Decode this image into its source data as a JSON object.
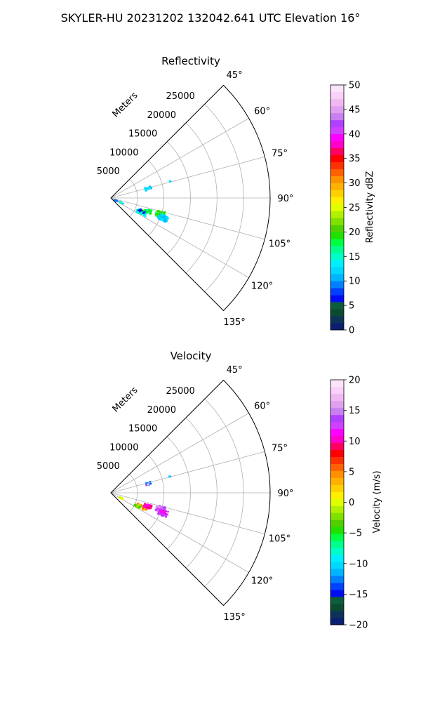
{
  "figure": {
    "suptitle": "SKYLER-HU  20231202  132042.641 UTC Elevation 16°"
  },
  "chart_data": [
    {
      "type": "polar-sector",
      "title": "Reflectivity",
      "radial_label": "Meters",
      "theta_range": [
        45,
        135
      ],
      "r_range": [
        0,
        30000
      ],
      "grid": true,
      "theta_ticks": [
        "45°",
        "60°",
        "75°",
        "90°",
        "105°",
        "120°",
        "135°"
      ],
      "theta_values": [
        45,
        60,
        75,
        90,
        105,
        120,
        135
      ],
      "r_ticks": [
        "5000",
        "10000",
        "15000",
        "20000",
        "25000"
      ],
      "r_values": [
        5000,
        10000,
        15000,
        20000,
        25000
      ],
      "colorbar": {
        "label": "Reflectivity dBZ",
        "range": [
          0,
          50
        ],
        "ticks": [
          "0",
          "5",
          "10",
          "15",
          "20",
          "25",
          "30",
          "35",
          "40",
          "45",
          "50"
        ],
        "tick_values": [
          0,
          5,
          10,
          15,
          20,
          25,
          30,
          35,
          40,
          45,
          50
        ],
        "colors": [
          "#0a1f6e",
          "#0d3358",
          "#0b4a2f",
          "#0d5c3a",
          "#000cf5",
          "#0040ff",
          "#0080ff",
          "#00b4ff",
          "#00d8ff",
          "#00eeff",
          "#00ffc8",
          "#00ff8c",
          "#00ff40",
          "#20e000",
          "#50d000",
          "#80e000",
          "#b0f000",
          "#e0ff00",
          "#ffee00",
          "#ffd000",
          "#ffb000",
          "#ff9000",
          "#ff6000",
          "#ff3000",
          "#ff0000",
          "#ff0060",
          "#ff00c8",
          "#ff00ff",
          "#d040ff",
          "#b040ff",
          "#c880f0",
          "#e0a0f0",
          "#f0b8f0",
          "#f8d0f8",
          "#fbe4fb"
        ]
      },
      "echoes": [
        {
          "theta": 76,
          "r": 7300,
          "value": 12,
          "spread_r": 600,
          "spread_t": 2.5,
          "count": 14
        },
        {
          "theta": 74.5,
          "r": 11500,
          "value": 13,
          "spread_r": 150,
          "spread_t": 0.6,
          "count": 3
        },
        {
          "theta": 117,
          "r": 1100,
          "value": 8,
          "spread_r": 300,
          "spread_t": 3,
          "count": 6
        },
        {
          "theta": 114,
          "r": 2200,
          "value": 13,
          "spread_r": 400,
          "spread_t": 2.5,
          "count": 6
        },
        {
          "theta": 115,
          "r": 6400,
          "value": 15,
          "spread_r": 1000,
          "spread_t": 4,
          "count": 70
        },
        {
          "theta": 110,
          "r": 7400,
          "value": 18,
          "spread_r": 700,
          "spread_t": 3,
          "count": 40
        },
        {
          "theta": 108,
          "r": 9800,
          "value": 19,
          "spread_r": 800,
          "spread_t": 3.5,
          "count": 70
        },
        {
          "theta": 111,
          "r": 10500,
          "value": 12,
          "spread_r": 900,
          "spread_t": 3,
          "count": 55
        },
        {
          "theta": 113,
          "r": 6300,
          "value": 6,
          "spread_r": 600,
          "spread_t": 2,
          "count": 12
        }
      ]
    },
    {
      "type": "polar-sector",
      "title": "Velocity",
      "radial_label": "Meters",
      "theta_range": [
        45,
        135
      ],
      "r_range": [
        0,
        30000
      ],
      "grid": true,
      "theta_ticks": [
        "45°",
        "60°",
        "75°",
        "90°",
        "105°",
        "120°",
        "135°"
      ],
      "theta_values": [
        45,
        60,
        75,
        90,
        105,
        120,
        135
      ],
      "r_ticks": [
        "5000",
        "10000",
        "15000",
        "20000",
        "25000"
      ],
      "r_values": [
        5000,
        10000,
        15000,
        20000,
        25000
      ],
      "colorbar": {
        "label": "Velocity (m/s)",
        "range": [
          -20,
          20
        ],
        "ticks": [
          "−20",
          "−15",
          "−10",
          "−5",
          "0",
          "5",
          "10",
          "15",
          "20"
        ],
        "tick_values": [
          -20,
          -15,
          -10,
          -5,
          0,
          5,
          10,
          15,
          20
        ],
        "colors": [
          "#0a1f6e",
          "#0d3358",
          "#0b4a2f",
          "#0d5c3a",
          "#000cf5",
          "#0040ff",
          "#0080ff",
          "#00b4ff",
          "#00d8ff",
          "#00eeff",
          "#00ffc8",
          "#00ff8c",
          "#00ff40",
          "#20e000",
          "#50d000",
          "#80e000",
          "#b0f000",
          "#e0ff00",
          "#ffee00",
          "#ffd000",
          "#ffb000",
          "#ff9000",
          "#ff6000",
          "#ff3000",
          "#ff0000",
          "#ff0060",
          "#ff00c8",
          "#ff00ff",
          "#d040ff",
          "#b040ff",
          "#c880f0",
          "#e0a0f0",
          "#f0b8f0",
          "#f8d0f8",
          "#fbe4fb"
        ]
      },
      "echoes": [
        {
          "theta": 76,
          "r": 7300,
          "value": -12,
          "spread_r": 600,
          "spread_t": 2.5,
          "count": 10
        },
        {
          "theta": 77,
          "r": 7000,
          "value": 16,
          "spread_r": 300,
          "spread_t": 1.5,
          "count": 5
        },
        {
          "theta": 74.5,
          "r": 11500,
          "value": -12,
          "spread_r": 150,
          "spread_t": 0.6,
          "count": 3
        },
        {
          "theta": 117,
          "r": 2200,
          "value": 0,
          "spread_r": 400,
          "spread_t": 2.5,
          "count": 8
        },
        {
          "theta": 115,
          "r": 6400,
          "value": 4,
          "spread_r": 1000,
          "spread_t": 3.5,
          "count": 45
        },
        {
          "theta": 117,
          "r": 5600,
          "value": -3,
          "spread_r": 600,
          "spread_t": 2,
          "count": 20
        },
        {
          "theta": 110,
          "r": 7400,
          "value": 10,
          "spread_r": 700,
          "spread_t": 3,
          "count": 45
        },
        {
          "theta": 108,
          "r": 9800,
          "value": 14,
          "spread_r": 800,
          "spread_t": 3.5,
          "count": 80
        },
        {
          "theta": 111,
          "r": 10500,
          "value": 12,
          "spread_r": 900,
          "spread_t": 3,
          "count": 45
        }
      ]
    }
  ]
}
